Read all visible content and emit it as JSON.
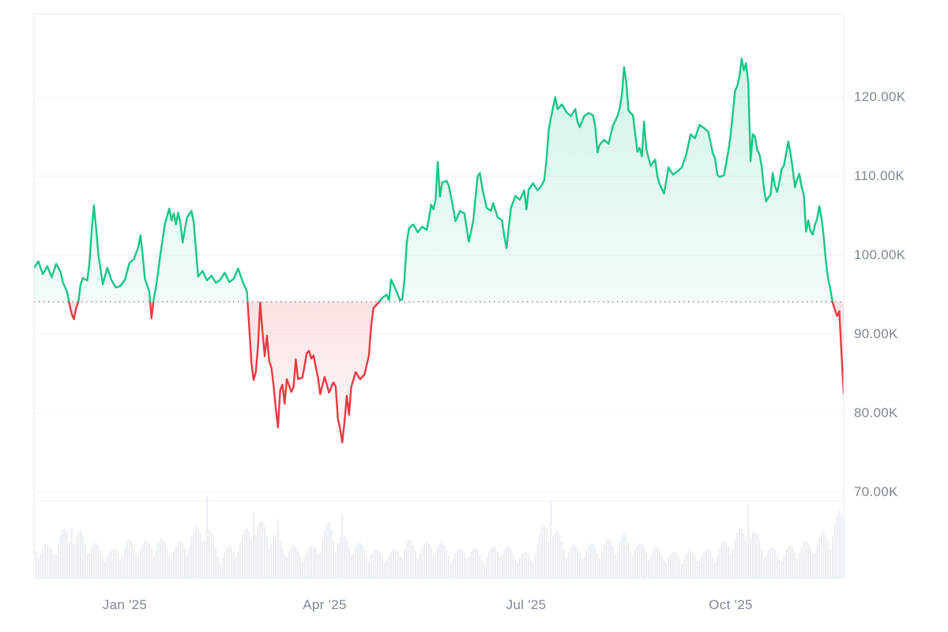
{
  "page": {
    "background": "#ffffff",
    "description_colors": {
      "line_up": "#16c784",
      "line_down": "#ea3943",
      "fill_up_top": "rgba(22,199,132,0.20)",
      "fill_up_bottom": "rgba(22,199,132,0.05)",
      "fill_down_top": "rgba(234,57,67,0.15)",
      "fill_down_bottom": "rgba(234,57,67,0.02)",
      "grid": "#f0f2f4",
      "frame": "#e8eaed",
      "baseline_dots": "#7f8894",
      "axis_text": "#7e8799",
      "volume_bar": "#e9edf2"
    }
  },
  "chart_data": {
    "type": "area",
    "title": "",
    "xlabel": "",
    "ylabel": "",
    "legend": "none",
    "grid": "horizontal-only",
    "y_axis_side": "right",
    "baseline_value_k": 94.1,
    "baseline_style": "dotted",
    "x_range_days": [
      0,
      365
    ],
    "ylim_k": [
      66.5,
      130.5
    ],
    "y_ticks": [
      {
        "value_k": 120,
        "label": "120.00K"
      },
      {
        "value_k": 110,
        "label": "110.00K"
      },
      {
        "value_k": 100,
        "label": "100.00K"
      },
      {
        "value_k": 90,
        "label": "90.00K"
      },
      {
        "value_k": 80,
        "label": "80.00K"
      },
      {
        "value_k": 70,
        "label": "70.00K"
      }
    ],
    "x_ticks": [
      {
        "day": 41,
        "label": "Jan '25"
      },
      {
        "day": 131,
        "label": "Apr '25"
      },
      {
        "day": 222,
        "label": "Jul '25"
      },
      {
        "day": 314,
        "label": "Oct '25"
      }
    ],
    "series": [
      {
        "name": "price",
        "unit": "K",
        "points_day_valueK": [
          [
            0,
            98.4
          ],
          [
            2,
            99.2
          ],
          [
            4,
            97.6
          ],
          [
            6,
            98.6
          ],
          [
            8,
            97.2
          ],
          [
            10,
            98.9
          ],
          [
            12,
            97.9
          ],
          [
            13,
            96.6
          ],
          [
            15,
            95.3
          ],
          [
            16,
            93.8
          ],
          [
            17,
            92.6
          ],
          [
            18,
            91.9
          ],
          [
            19,
            93.3
          ],
          [
            20,
            94.1
          ],
          [
            21,
            96.3
          ],
          [
            22,
            97.1
          ],
          [
            24,
            96.8
          ],
          [
            25,
            99.0
          ],
          [
            26,
            103.0
          ],
          [
            27,
            106.3
          ],
          [
            28,
            103.5
          ],
          [
            29,
            100.2
          ],
          [
            31,
            96.3
          ],
          [
            33,
            98.4
          ],
          [
            35,
            96.8
          ],
          [
            37,
            95.9
          ],
          [
            39,
            96.1
          ],
          [
            41,
            96.9
          ],
          [
            43,
            99.0
          ],
          [
            45,
            99.5
          ],
          [
            47,
            101.0
          ],
          [
            48,
            102.5
          ],
          [
            49,
            100.0
          ],
          [
            50,
            97.0
          ],
          [
            51,
            96.2
          ],
          [
            52,
            95.4
          ],
          [
            53,
            92.0
          ],
          [
            54,
            94.5
          ],
          [
            55,
            96.0
          ],
          [
            56,
            98.0
          ],
          [
            57,
            100.2
          ],
          [
            59,
            103.9
          ],
          [
            61,
            105.9
          ],
          [
            62,
            104.4
          ],
          [
            63,
            105.3
          ],
          [
            64,
            103.9
          ],
          [
            65,
            105.4
          ],
          [
            66,
            104.1
          ],
          [
            67,
            101.6
          ],
          [
            68,
            103.3
          ],
          [
            69,
            104.8
          ],
          [
            71,
            105.6
          ],
          [
            72,
            104.2
          ],
          [
            74,
            97.3
          ],
          [
            76,
            98.0
          ],
          [
            78,
            96.8
          ],
          [
            80,
            97.4
          ],
          [
            82,
            96.5
          ],
          [
            84,
            96.9
          ],
          [
            86,
            97.8
          ],
          [
            88,
            96.6
          ],
          [
            90,
            97.0
          ],
          [
            92,
            98.3
          ],
          [
            94,
            96.7
          ],
          [
            96,
            95.4
          ],
          [
            97,
            91.0
          ],
          [
            98,
            86.5
          ],
          [
            99,
            84.2
          ],
          [
            100,
            85.2
          ],
          [
            101,
            88.5
          ],
          [
            102,
            94.0
          ],
          [
            103,
            90.3
          ],
          [
            104,
            87.2
          ],
          [
            105,
            89.8
          ],
          [
            106,
            86.6
          ],
          [
            107,
            85.8
          ],
          [
            108,
            83.5
          ],
          [
            109,
            80.6
          ],
          [
            110,
            78.2
          ],
          [
            111,
            82.9
          ],
          [
            112,
            83.6
          ],
          [
            113,
            81.2
          ],
          [
            114,
            84.3
          ],
          [
            116,
            82.7
          ],
          [
            117,
            83.3
          ],
          [
            118,
            86.8
          ],
          [
            119,
            84.3
          ],
          [
            121,
            84.5
          ],
          [
            123,
            87.6
          ],
          [
            124,
            87.9
          ],
          [
            125,
            86.9
          ],
          [
            126,
            87.3
          ],
          [
            127,
            85.9
          ],
          [
            128,
            84.5
          ],
          [
            129,
            82.4
          ],
          [
            131,
            84.6
          ],
          [
            133,
            82.6
          ],
          [
            135,
            83.9
          ],
          [
            136,
            83.4
          ],
          [
            137,
            79.3
          ],
          [
            138,
            78.0
          ],
          [
            139,
            76.3
          ],
          [
            140,
            79.0
          ],
          [
            141,
            82.2
          ],
          [
            142,
            79.8
          ],
          [
            143,
            83.3
          ],
          [
            145,
            85.2
          ],
          [
            147,
            84.3
          ],
          [
            149,
            84.9
          ],
          [
            151,
            87.3
          ],
          [
            152,
            91.0
          ],
          [
            153,
            93.3
          ],
          [
            155,
            93.9
          ],
          [
            157,
            94.6
          ],
          [
            159,
            95.0
          ],
          [
            160,
            94.3
          ],
          [
            161,
            96.9
          ],
          [
            163,
            95.7
          ],
          [
            165,
            94.3
          ],
          [
            166,
            94.4
          ],
          [
            167,
            96.9
          ],
          [
            168,
            101.5
          ],
          [
            169,
            103.4
          ],
          [
            171,
            103.9
          ],
          [
            173,
            102.9
          ],
          [
            175,
            103.6
          ],
          [
            177,
            103.2
          ],
          [
            178,
            104.6
          ],
          [
            179,
            106.4
          ],
          [
            180,
            105.8
          ],
          [
            181,
            106.9
          ],
          [
            182,
            111.8
          ],
          [
            183,
            107.4
          ],
          [
            184,
            109.2
          ],
          [
            186,
            109.4
          ],
          [
            187,
            108.8
          ],
          [
            188,
            107.4
          ],
          [
            189,
            105.9
          ],
          [
            190,
            104.3
          ],
          [
            192,
            105.6
          ],
          [
            194,
            105.3
          ],
          [
            196,
            101.7
          ],
          [
            198,
            104.3
          ],
          [
            200,
            110.0
          ],
          [
            201,
            110.4
          ],
          [
            202,
            108.6
          ],
          [
            204,
            106.0
          ],
          [
            206,
            105.6
          ],
          [
            207,
            106.6
          ],
          [
            209,
            104.8
          ],
          [
            211,
            104.4
          ],
          [
            212,
            102.4
          ],
          [
            213,
            100.9
          ],
          [
            214,
            103.6
          ],
          [
            215,
            106.0
          ],
          [
            217,
            107.5
          ],
          [
            219,
            107.0
          ],
          [
            221,
            108.2
          ],
          [
            222,
            105.8
          ],
          [
            223,
            108.3
          ],
          [
            225,
            109.1
          ],
          [
            227,
            108.2
          ],
          [
            229,
            108.9
          ],
          [
            230,
            109.5
          ],
          [
            231,
            112.0
          ],
          [
            232,
            115.8
          ],
          [
            233,
            117.4
          ],
          [
            235,
            120.0
          ],
          [
            236,
            118.5
          ],
          [
            238,
            119.1
          ],
          [
            240,
            118.1
          ],
          [
            242,
            117.6
          ],
          [
            244,
            118.5
          ],
          [
            245,
            116.9
          ],
          [
            246,
            116.2
          ],
          [
            248,
            117.6
          ],
          [
            250,
            118.0
          ],
          [
            252,
            117.7
          ],
          [
            253,
            116.3
          ],
          [
            254,
            113.0
          ],
          [
            255,
            114.0
          ],
          [
            257,
            114.6
          ],
          [
            259,
            114.1
          ],
          [
            261,
            116.4
          ],
          [
            263,
            117.6
          ],
          [
            264,
            118.6
          ],
          [
            265,
            120.3
          ],
          [
            266,
            123.8
          ],
          [
            267,
            121.9
          ],
          [
            268,
            118.3
          ],
          [
            270,
            117.7
          ],
          [
            272,
            113.1
          ],
          [
            273,
            113.6
          ],
          [
            274,
            112.5
          ],
          [
            275,
            116.9
          ],
          [
            276,
            113.4
          ],
          [
            278,
            111.3
          ],
          [
            280,
            112.1
          ],
          [
            281,
            110.0
          ],
          [
            282,
            109.0
          ],
          [
            284,
            107.8
          ],
          [
            286,
            111.1
          ],
          [
            288,
            110.2
          ],
          [
            290,
            110.6
          ],
          [
            292,
            111.1
          ],
          [
            294,
            112.7
          ],
          [
            296,
            115.3
          ],
          [
            298,
            114.8
          ],
          [
            300,
            116.5
          ],
          [
            302,
            116.1
          ],
          [
            304,
            115.6
          ],
          [
            306,
            112.9
          ],
          [
            307,
            112.3
          ],
          [
            308,
            110.2
          ],
          [
            309,
            109.9
          ],
          [
            311,
            110.1
          ],
          [
            313,
            113.2
          ],
          [
            314,
            115.2
          ],
          [
            315,
            117.9
          ],
          [
            316,
            120.8
          ],
          [
            317,
            121.4
          ],
          [
            318,
            122.6
          ],
          [
            319,
            124.9
          ],
          [
            320,
            123.4
          ],
          [
            321,
            124.3
          ],
          [
            322,
            121.8
          ],
          [
            323,
            111.9
          ],
          [
            324,
            115.3
          ],
          [
            325,
            115.0
          ],
          [
            326,
            113.3
          ],
          [
            327,
            112.8
          ],
          [
            328,
            111.3
          ],
          [
            329,
            108.5
          ],
          [
            330,
            106.8
          ],
          [
            331,
            107.3
          ],
          [
            332,
            107.6
          ],
          [
            333,
            110.4
          ],
          [
            334,
            108.8
          ],
          [
            335,
            108.0
          ],
          [
            336,
            109.3
          ],
          [
            337,
            110.9
          ],
          [
            338,
            111.3
          ],
          [
            340,
            114.4
          ],
          [
            341,
            112.9
          ],
          [
            342,
            111.0
          ],
          [
            343,
            108.6
          ],
          [
            344,
            109.6
          ],
          [
            345,
            110.3
          ],
          [
            346,
            108.7
          ],
          [
            347,
            107.6
          ],
          [
            348,
            103.0
          ],
          [
            349,
            104.4
          ],
          [
            350,
            103.1
          ],
          [
            351,
            102.6
          ],
          [
            352,
            103.8
          ],
          [
            353,
            104.6
          ],
          [
            354,
            106.2
          ],
          [
            355,
            104.7
          ],
          [
            356,
            102.3
          ],
          [
            357,
            99.2
          ],
          [
            358,
            97.0
          ],
          [
            359,
            95.6
          ],
          [
            360,
            94.0
          ],
          [
            361,
            93.1
          ],
          [
            362,
            92.3
          ],
          [
            363,
            92.9
          ],
          [
            364,
            87.5
          ],
          [
            365,
            82.5
          ]
        ]
      }
    ],
    "volume": {
      "style": "histogram-bottom",
      "weekly_relative": [
        0.42,
        0.35,
        0.55,
        0.5,
        0.38,
        0.3,
        0.42,
        0.4,
        0.45,
        0.36,
        0.48,
        0.65,
        0.28,
        0.4,
        0.62,
        0.6,
        0.4,
        0.33,
        0.36,
        0.62,
        0.45,
        0.38,
        0.32,
        0.3,
        0.42,
        0.38,
        0.42,
        0.3,
        0.36,
        0.28,
        0.4,
        0.3,
        0.28,
        0.65,
        0.45,
        0.34,
        0.38,
        0.42,
        0.48,
        0.38,
        0.34,
        0.28,
        0.3,
        0.3,
        0.34,
        0.48,
        0.6,
        0.38,
        0.3,
        0.38,
        0.4,
        0.52,
        0.75
      ],
      "spike_days_relative": {
        "17": 0.62,
        "78": 1.0,
        "99": 0.8,
        "110": 0.72,
        "139": 0.78,
        "233": 0.92,
        "322": 0.9,
        "364": 0.8,
        "365": 0.72
      }
    }
  }
}
